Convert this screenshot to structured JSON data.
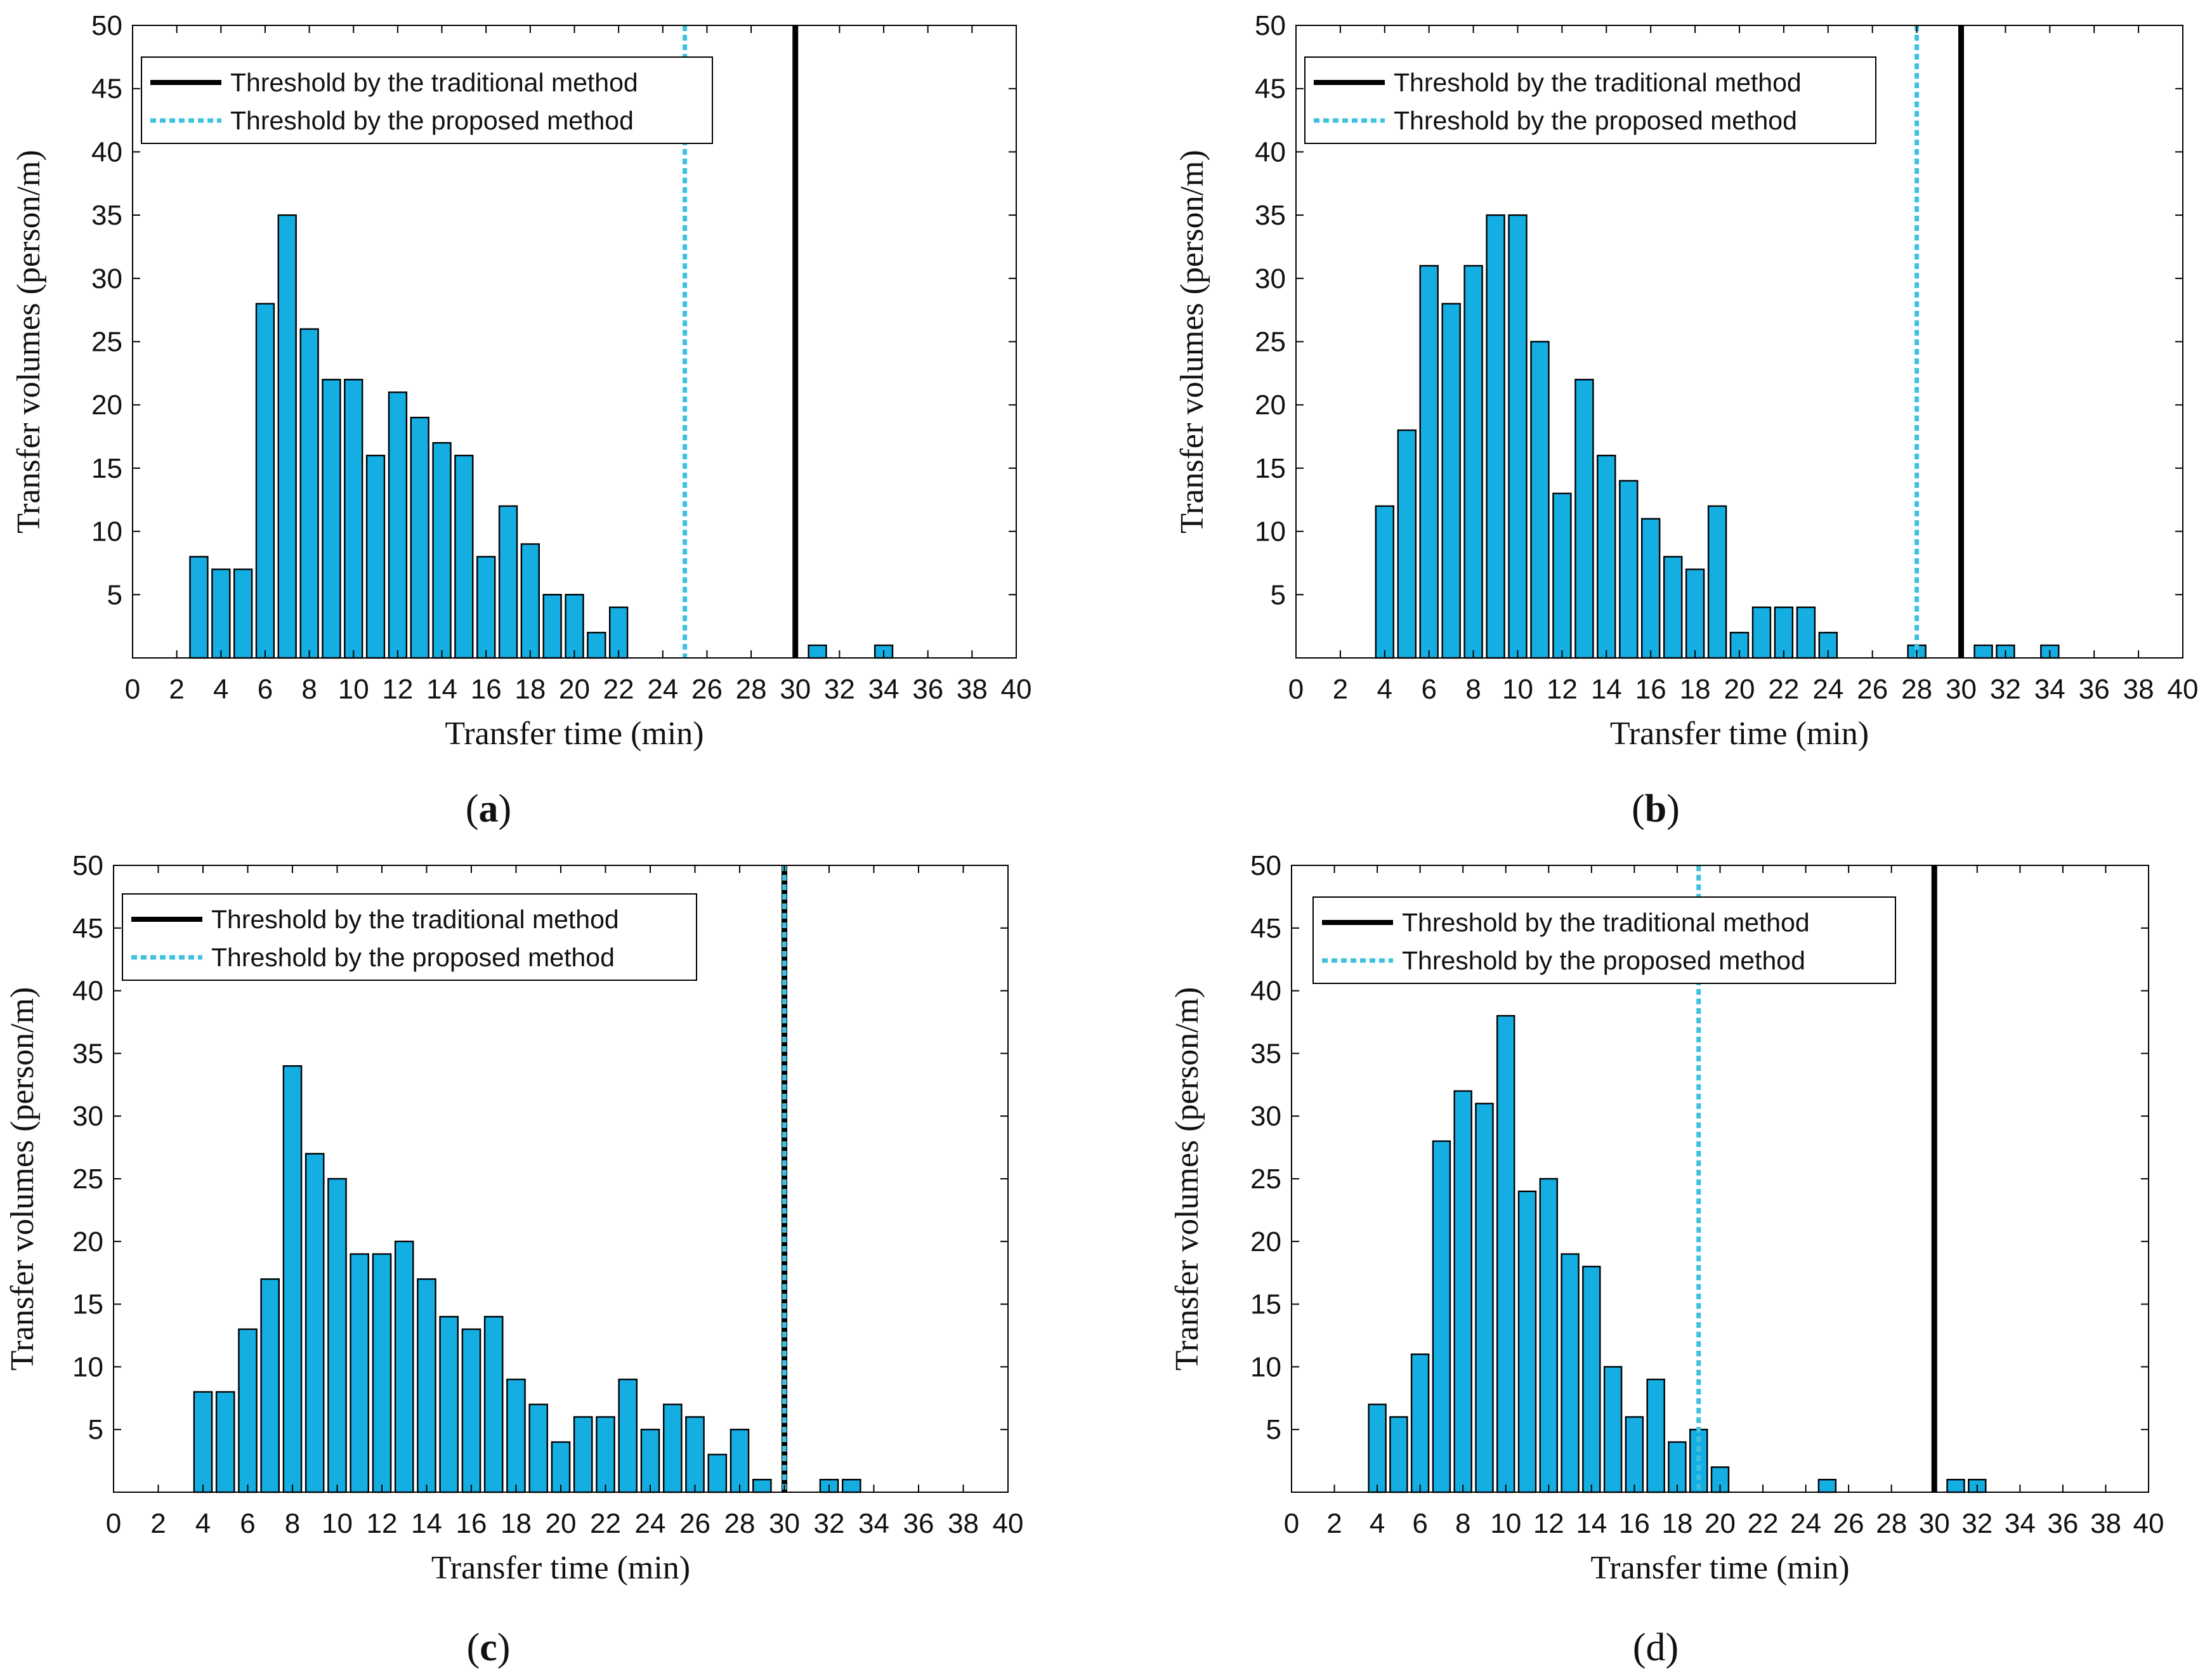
{
  "colors": {
    "bar": "#15aee3",
    "traditional": "#000000",
    "proposed": "#3ec1df"
  },
  "chart_data": [
    {
      "type": "bar",
      "caption_letter": "a",
      "caption_bold": true,
      "x": [
        1,
        2,
        3,
        4,
        5,
        6,
        7,
        8,
        9,
        10,
        11,
        12,
        13,
        14,
        15,
        16,
        17,
        18,
        19,
        20,
        21,
        22,
        23,
        24,
        25,
        26,
        27,
        28,
        29,
        30,
        31,
        32,
        33,
        34,
        35,
        36,
        37,
        38,
        39,
        40
      ],
      "values": [
        0,
        0,
        8,
        7,
        7,
        28,
        35,
        26,
        22,
        22,
        16,
        21,
        19,
        17,
        16,
        8,
        12,
        9,
        5,
        5,
        2,
        4,
        0,
        0,
        0,
        0,
        0,
        0,
        0,
        0,
        1,
        0,
        0,
        1,
        0,
        0,
        0,
        0,
        0,
        0
      ],
      "xlabel": "Transfer time (min)",
      "ylabel": "Transfer volumes (person/m)",
      "xlim": [
        0,
        40
      ],
      "ylim": [
        0,
        50
      ],
      "xticks": [
        "0",
        "2",
        "4",
        "6",
        "8",
        "10",
        "12",
        "14",
        "16",
        "18",
        "20",
        "22",
        "24",
        "26",
        "28",
        "30",
        "32",
        "34",
        "36",
        "38",
        "40"
      ],
      "yticks": [
        "5",
        "10",
        "15",
        "20",
        "25",
        "30",
        "35",
        "40",
        "45",
        "50"
      ],
      "threshold_traditional": 30,
      "threshold_proposed": 25,
      "legend": [
        "Threshold by the traditional method",
        "Threshold by the proposed method"
      ]
    },
    {
      "type": "bar",
      "caption_letter": "b",
      "caption_bold": true,
      "x": [
        1,
        2,
        3,
        4,
        5,
        6,
        7,
        8,
        9,
        10,
        11,
        12,
        13,
        14,
        15,
        16,
        17,
        18,
        19,
        20,
        21,
        22,
        23,
        24,
        25,
        26,
        27,
        28,
        29,
        30,
        31,
        32,
        33,
        34,
        35,
        36,
        37,
        38,
        39,
        40
      ],
      "values": [
        0,
        0,
        0,
        12,
        18,
        31,
        28,
        31,
        35,
        35,
        25,
        13,
        22,
        16,
        14,
        11,
        8,
        7,
        12,
        2,
        4,
        4,
        4,
        2,
        0,
        0,
        0,
        1,
        0,
        0,
        1,
        1,
        0,
        1,
        0,
        0,
        0,
        0,
        0,
        0
      ],
      "xlabel": "Transfer time (min)",
      "ylabel": "Transfer volumes (person/m)",
      "xlim": [
        0,
        40
      ],
      "ylim": [
        0,
        50
      ],
      "xticks": [
        "0",
        "2",
        "4",
        "6",
        "8",
        "10",
        "12",
        "14",
        "16",
        "18",
        "20",
        "22",
        "24",
        "26",
        "28",
        "30",
        "32",
        "34",
        "36",
        "38",
        "40"
      ],
      "yticks": [
        "5",
        "10",
        "15",
        "20",
        "25",
        "30",
        "35",
        "40",
        "45",
        "50"
      ],
      "threshold_traditional": 30,
      "threshold_proposed": 28,
      "legend": [
        "Threshold by the traditional method",
        "Threshold by the proposed method"
      ]
    },
    {
      "type": "bar",
      "caption_letter": "c",
      "caption_bold": true,
      "x": [
        1,
        2,
        3,
        4,
        5,
        6,
        7,
        8,
        9,
        10,
        11,
        12,
        13,
        14,
        15,
        16,
        17,
        18,
        19,
        20,
        21,
        22,
        23,
        24,
        25,
        26,
        27,
        28,
        29,
        30,
        31,
        32,
        33,
        34,
        35,
        36,
        37,
        38,
        39,
        40
      ],
      "values": [
        0,
        0,
        0,
        8,
        8,
        13,
        17,
        34,
        27,
        25,
        19,
        19,
        20,
        17,
        14,
        13,
        14,
        9,
        7,
        4,
        6,
        6,
        9,
        5,
        7,
        6,
        3,
        5,
        1,
        0,
        0,
        1,
        1,
        0,
        0,
        0,
        0,
        0,
        0,
        0
      ],
      "xlabel": "Transfer time (min)",
      "ylabel": "Transfer volumes (person/m)",
      "xlim": [
        0,
        40
      ],
      "ylim": [
        0,
        50
      ],
      "xticks": [
        "0",
        "2",
        "4",
        "6",
        "8",
        "10",
        "12",
        "14",
        "16",
        "18",
        "20",
        "22",
        "24",
        "26",
        "28",
        "30",
        "32",
        "34",
        "36",
        "38",
        "40"
      ],
      "yticks": [
        "5",
        "10",
        "15",
        "20",
        "25",
        "30",
        "35",
        "40",
        "45",
        "50"
      ],
      "threshold_traditional": 30,
      "threshold_proposed": 30,
      "legend": [
        "Threshold by the traditional method",
        "Threshold by the proposed method"
      ]
    },
    {
      "type": "bar",
      "caption_letter": "d",
      "caption_bold": false,
      "x": [
        1,
        2,
        3,
        4,
        5,
        6,
        7,
        8,
        9,
        10,
        11,
        12,
        13,
        14,
        15,
        16,
        17,
        18,
        19,
        20,
        21,
        22,
        23,
        24,
        25,
        26,
        27,
        28,
        29,
        30,
        31,
        32,
        33,
        34,
        35,
        36,
        37,
        38,
        39,
        40
      ],
      "values": [
        0,
        0,
        0,
        7,
        6,
        11,
        28,
        32,
        31,
        38,
        24,
        25,
        19,
        18,
        10,
        6,
        9,
        4,
        5,
        2,
        0,
        0,
        0,
        0,
        1,
        0,
        0,
        0,
        0,
        0,
        1,
        1,
        0,
        0,
        0,
        0,
        0,
        0,
        0,
        0
      ],
      "xlabel": "Transfer time (min)",
      "ylabel": "Transfer volumes (person/m)",
      "xlim": [
        0,
        40
      ],
      "ylim": [
        0,
        50
      ],
      "xticks": [
        "0",
        "2",
        "4",
        "6",
        "8",
        "10",
        "12",
        "14",
        "16",
        "18",
        "20",
        "22",
        "24",
        "26",
        "28",
        "30",
        "32",
        "34",
        "36",
        "38",
        "40"
      ],
      "yticks": [
        "5",
        "10",
        "15",
        "20",
        "25",
        "30",
        "35",
        "40",
        "45",
        "50"
      ],
      "threshold_traditional": 30,
      "threshold_proposed": 19,
      "legend": [
        "Threshold by the traditional method",
        "Threshold by the proposed method"
      ]
    }
  ]
}
